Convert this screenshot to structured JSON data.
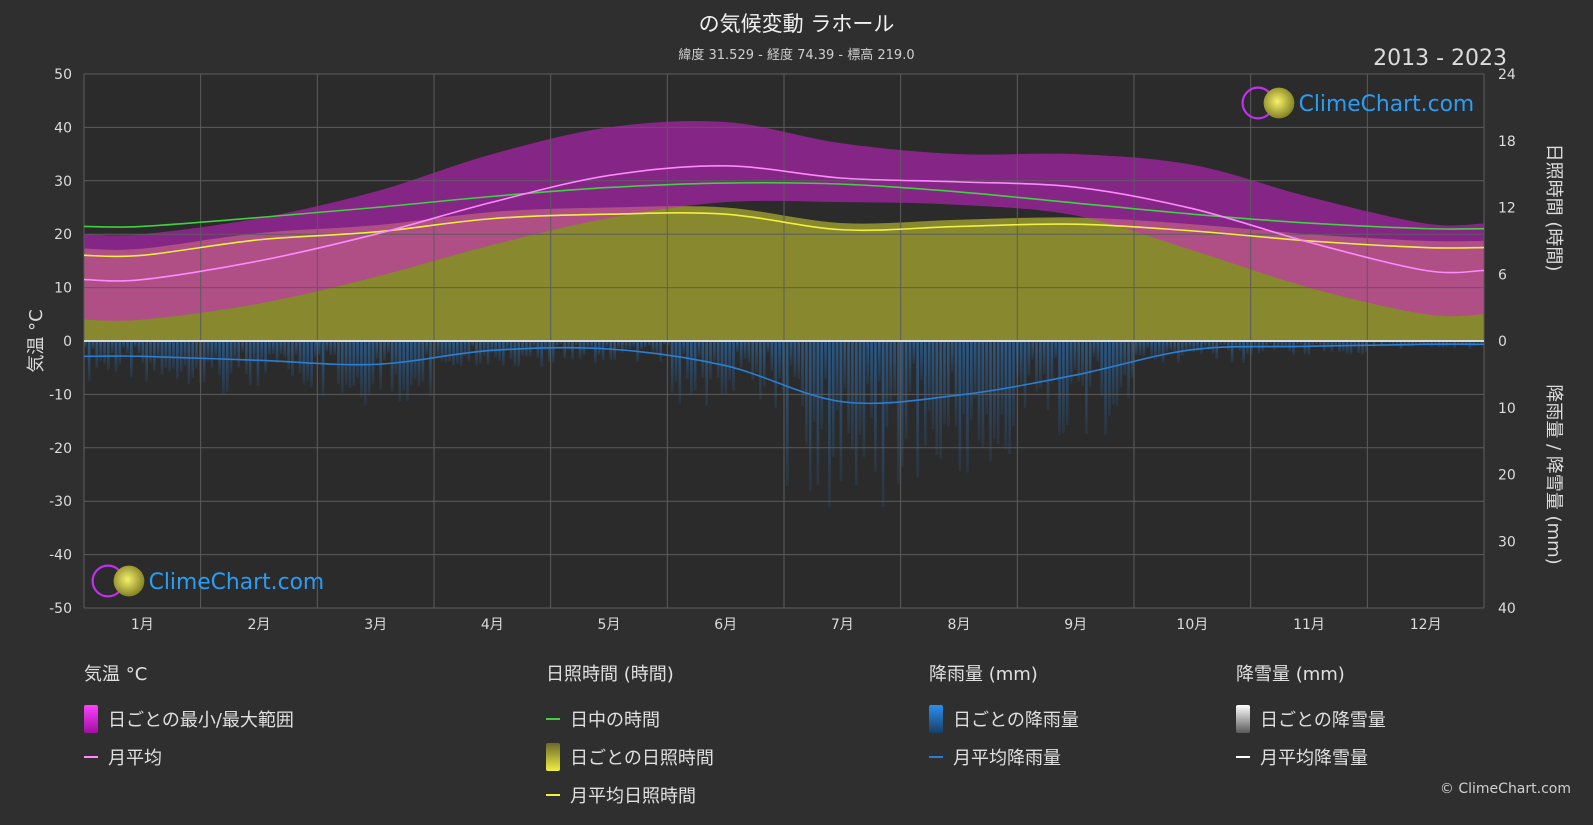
{
  "header": {
    "title": "の気候変動 ラホール",
    "subtitle": "緯度 31.529 - 経度 74.39 - 標高 219.0",
    "period": "2013 - 2023"
  },
  "brand": {
    "name": "ClimeChart.com",
    "copyright": "© ClimeChart.com"
  },
  "axes": {
    "left_label": "気温 °C",
    "right_top_label": "日照時間 (時間)",
    "right_bottom_label": "降雨量 / 降雪量 (mm)"
  },
  "colors": {
    "background": "#2f2f2f",
    "temp_band": "#d020d0",
    "temp_mean": "#ff88ff",
    "daylight": "#40d040",
    "sunshine_band": "#a8a830",
    "sunshine_mean": "#f0f040",
    "rain": "#2a7fd4",
    "snow": "#ffffff",
    "brand_text": "#2a9df4"
  },
  "legend": {
    "temp": {
      "title": "気温 °C",
      "range_label": "日ごとの最小/最大範囲",
      "mean_label": "月平均"
    },
    "sun": {
      "title": "日照時間 (時間)",
      "daylight_label": "日中の時間",
      "sunshine_label": "日ごとの日照時間",
      "mean_label": "月平均日照時間"
    },
    "rain": {
      "title": "降雨量 (mm)",
      "daily_label": "日ごとの降雨量",
      "mean_label": "月平均降雨量"
    },
    "snow": {
      "title": "降雪量 (mm)",
      "daily_label": "日ごとの降雪量",
      "mean_label": "月平均降雪量"
    }
  },
  "chart_data": {
    "type": "line",
    "categories": [
      "1月",
      "2月",
      "3月",
      "4月",
      "5月",
      "6月",
      "7月",
      "8月",
      "9月",
      "10月",
      "11月",
      "12月"
    ],
    "y_left": {
      "range": [
        -50,
        50
      ],
      "ticks": [
        50,
        40,
        30,
        20,
        10,
        0,
        -10,
        -20,
        -30,
        -40,
        -50
      ]
    },
    "y_right_top": {
      "range": [
        0,
        24
      ],
      "ticks": [
        24,
        18,
        12,
        6,
        0
      ]
    },
    "y_right_bottom": {
      "range": [
        0,
        40
      ],
      "ticks": [
        10,
        20,
        30,
        40
      ]
    },
    "grid": true,
    "series": [
      {
        "name": "日中の時間",
        "axis": "sunshine_hours",
        "values": [
          10.3,
          11.1,
          12.0,
          13.0,
          13.8,
          14.2,
          14.1,
          13.4,
          12.4,
          11.4,
          10.6,
          10.1
        ]
      },
      {
        "name": "月平均日照時間",
        "axis": "sunshine_hours",
        "values": [
          7.7,
          9.1,
          9.8,
          11.0,
          11.4,
          11.4,
          10.0,
          10.3,
          10.5,
          9.9,
          9.0,
          8.4
        ]
      },
      {
        "name": "月平均",
        "axis": "temperature_c",
        "values": [
          11.5,
          15.0,
          20.0,
          26.0,
          31.0,
          32.8,
          30.5,
          29.8,
          28.8,
          24.8,
          18.5,
          13.2
        ]
      },
      {
        "name": "月平均降雨量",
        "axis": "precipitation_mm",
        "values": [
          2.3,
          2.9,
          3.5,
          1.4,
          1.2,
          3.7,
          9.1,
          8.1,
          5.1,
          1.3,
          0.8,
          0.5
        ]
      },
      {
        "name": "月平均降雪量",
        "axis": "precipitation_mm",
        "values": [
          0,
          0,
          0,
          0,
          0,
          0,
          0,
          0,
          0,
          0,
          0,
          0
        ]
      }
    ],
    "temp_range": {
      "min": [
        4,
        7,
        12,
        18,
        23,
        26,
        26,
        25.5,
        23.5,
        17,
        10,
        5
      ],
      "max": [
        20,
        23,
        28,
        35,
        40,
        41,
        37,
        35,
        35,
        33,
        27,
        22
      ]
    }
  }
}
